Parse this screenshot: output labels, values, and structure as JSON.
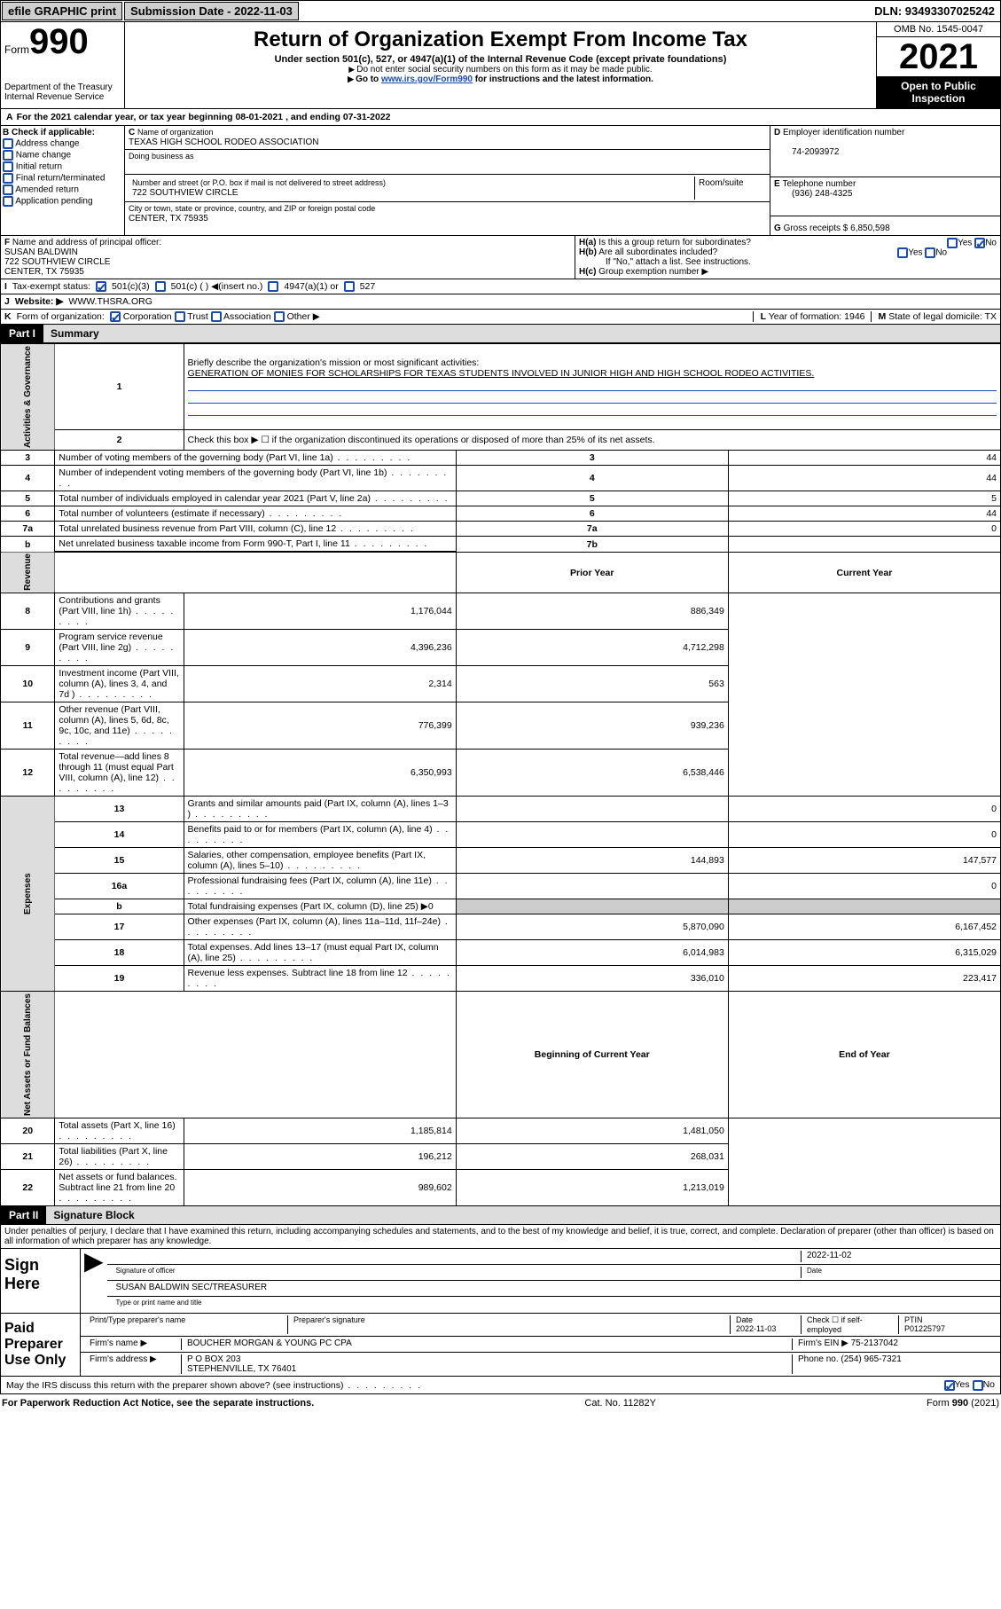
{
  "top": {
    "efile": "efile GRAPHIC print",
    "sub_label": "Submission Date - 2022-11-03",
    "dln": "DLN: 93493307025242"
  },
  "omb": "OMB No. 1545-0047",
  "year": "2021",
  "open": "Open to Public Inspection",
  "form_label": "Form",
  "form_num": "990",
  "dept": "Department of the Treasury\nInternal Revenue Service",
  "title": "Return of Organization Exempt From Income Tax",
  "subtitle": "Under section 501(c), 527, or 4947(a)(1) of the Internal Revenue Code (except private foundations)",
  "note1": "Do not enter social security numbers on this form as it may be made public.",
  "note2_pre": "Go to ",
  "note2_link": "www.irs.gov/Form990",
  "note2_post": " for instructions and the latest information.",
  "a_line": "For the 2021 calendar year, or tax year beginning 08-01-2021    , and ending 07-31-2022",
  "b_hdr": "Check if applicable:",
  "b_opts": [
    "Address change",
    "Name change",
    "Initial return",
    "Final return/terminated",
    "Amended return",
    "Application pending"
  ],
  "c_label": "Name of organization",
  "c_name": "TEXAS HIGH SCHOOL RODEO ASSOCIATION",
  "dba": "Doing business as",
  "addr_label": "Number and street (or P.O. box if mail is not delivered to street address)",
  "room": "Room/suite",
  "addr": "722 SOUTHVIEW CIRCLE",
  "city_label": "City or town, state or province, country, and ZIP or foreign postal code",
  "city": "CENTER, TX  75935",
  "d_label": "Employer identification number",
  "ein": "74-2093972",
  "e_label": "Telephone number",
  "phone": "(936) 248-4325",
  "g_label": "Gross receipts $",
  "g_amt": "6,850,598",
  "f_label": "Name and address of principal officer:",
  "f_name": "SUSAN BALDWIN",
  "f_addr1": "722 SOUTHVIEW CIRCLE",
  "f_addr2": "CENTER, TX  75935",
  "ha": "Is this a group return for subordinates?",
  "hb": "Are all subordinates included?",
  "ha_yn": "No",
  "h_note": "If \"No,\" attach a list. See instructions.",
  "hc": "Group exemption number ▶",
  "i_label": "Tax-exempt status:",
  "i_501c3": "501(c)(3)",
  "i_501c": "501(c) (  ) ◀(insert no.)",
  "i_4947": "4947(a)(1) or",
  "i_527": "527",
  "j_label": "Website: ▶",
  "website": "WWW.THSRA.ORG",
  "k_label": "Form of organization:",
  "k_opts": [
    "Corporation",
    "Trust",
    "Association",
    "Other ▶"
  ],
  "l_label": "Year of formation:",
  "l_val": "1946",
  "m_label": "State of legal domicile:",
  "m_val": "TX",
  "part1": "Part I",
  "part1_title": "Summary",
  "mission_label": "Briefly describe the organization's mission or most significant activities:",
  "mission": "GENERATION OF MONIES FOR SCHOLARSHIPS FOR TEXAS STUDENTS INVOLVED IN JUNIOR HIGH AND HIGH SCHOOL RODEO ACTIVITIES.",
  "line2": "Check this box ▶ ☐  if the organization discontinued its operations or disposed of more than 25% of its net assets.",
  "lines_gov": [
    {
      "n": "3",
      "t": "Number of voting members of the governing body (Part VI, line 1a)",
      "box": "3",
      "val": "44"
    },
    {
      "n": "4",
      "t": "Number of independent voting members of the governing body (Part VI, line 1b)",
      "box": "4",
      "val": "44"
    },
    {
      "n": "5",
      "t": "Total number of individuals employed in calendar year 2021 (Part V, line 2a)",
      "box": "5",
      "val": "5"
    },
    {
      "n": "6",
      "t": "Total number of volunteers (estimate if necessary)",
      "box": "6",
      "val": "44"
    },
    {
      "n": "7a",
      "t": "Total unrelated business revenue from Part VIII, column (C), line 12",
      "box": "7a",
      "val": "0"
    },
    {
      "n": "b",
      "t": "Net unrelated business taxable income from Form 990-T, Part I, line 11",
      "box": "7b",
      "val": ""
    }
  ],
  "prior_hdr": "Prior Year",
  "curr_hdr": "Current Year",
  "revenue": [
    {
      "n": "8",
      "t": "Contributions and grants (Part VIII, line 1h)",
      "p": "1,176,044",
      "c": "886,349"
    },
    {
      "n": "9",
      "t": "Program service revenue (Part VIII, line 2g)",
      "p": "4,396,236",
      "c": "4,712,298"
    },
    {
      "n": "10",
      "t": "Investment income (Part VIII, column (A), lines 3, 4, and 7d )",
      "p": "2,314",
      "c": "563"
    },
    {
      "n": "11",
      "t": "Other revenue (Part VIII, column (A), lines 5, 6d, 8c, 9c, 10c, and 11e)",
      "p": "776,399",
      "c": "939,236"
    },
    {
      "n": "12",
      "t": "Total revenue—add lines 8 through 11 (must equal Part VIII, column (A), line 12)",
      "p": "6,350,993",
      "c": "6,538,446"
    }
  ],
  "expenses": [
    {
      "n": "13",
      "t": "Grants and similar amounts paid (Part IX, column (A), lines 1–3 )",
      "p": "",
      "c": "0"
    },
    {
      "n": "14",
      "t": "Benefits paid to or for members (Part IX, column (A), line 4)",
      "p": "",
      "c": "0"
    },
    {
      "n": "15",
      "t": "Salaries, other compensation, employee benefits (Part IX, column (A), lines 5–10)",
      "p": "144,893",
      "c": "147,577"
    },
    {
      "n": "16a",
      "t": "Professional fundraising fees (Part IX, column (A), line 11e)",
      "p": "",
      "c": "0"
    },
    {
      "n": "b",
      "t": "Total fundraising expenses (Part IX, column (D), line 25) ▶0",
      "p": "GRAY",
      "c": "GRAY"
    },
    {
      "n": "17",
      "t": "Other expenses (Part IX, column (A), lines 11a–11d, 11f–24e)",
      "p": "5,870,090",
      "c": "6,167,452"
    },
    {
      "n": "18",
      "t": "Total expenses. Add lines 13–17 (must equal Part IX, column (A), line 25)",
      "p": "6,014,983",
      "c": "6,315,029"
    },
    {
      "n": "19",
      "t": "Revenue less expenses. Subtract line 18 from line 12",
      "p": "336,010",
      "c": "223,417"
    }
  ],
  "beg_hdr": "Beginning of Current Year",
  "end_hdr": "End of Year",
  "netassets": [
    {
      "n": "20",
      "t": "Total assets (Part X, line 16)",
      "p": "1,185,814",
      "c": "1,481,050"
    },
    {
      "n": "21",
      "t": "Total liabilities (Part X, line 26)",
      "p": "196,212",
      "c": "268,031"
    },
    {
      "n": "22",
      "t": "Net assets or fund balances. Subtract line 21 from line 20",
      "p": "989,602",
      "c": "1,213,019"
    }
  ],
  "part2": "Part II",
  "part2_title": "Signature Block",
  "penalties": "Under penalties of perjury, I declare that I have examined this return, including accompanying schedules and statements, and to the best of my knowledge and belief, it is true, correct, and complete. Declaration of preparer (other than officer) is based on all information of which preparer has any knowledge.",
  "sign_here": "Sign Here",
  "sig_date": "2022-11-02",
  "sig_of": "Signature of officer",
  "date_lbl": "Date",
  "officer": "SUSAN BALDWIN  SEC/TREASURER",
  "type_lbl": "Type or print name and title",
  "paid": "Paid Preparer Use Only",
  "prep_name_lbl": "Print/Type preparer's name",
  "prep_sig_lbl": "Preparer's signature",
  "prep_date_lbl": "Date",
  "prep_date": "2022-11-03",
  "check_self": "Check ☐ if self-employed",
  "ptin_lbl": "PTIN",
  "ptin": "P01225797",
  "firm_name_lbl": "Firm's name   ▶",
  "firm_name": "BOUCHER MORGAN & YOUNG PC CPA",
  "firm_ein_lbl": "Firm's EIN ▶",
  "firm_ein": "75-2137042",
  "firm_addr_lbl": "Firm's address ▶",
  "firm_addr1": "P O BOX 203",
  "firm_addr2": "STEPHENVILLE, TX  76401",
  "firm_phone_lbl": "Phone no.",
  "firm_phone": "(254) 965-7321",
  "may_irs": "May the IRS discuss this return with the preparer shown above? (see instructions)",
  "paperwork": "For Paperwork Reduction Act Notice, see the separate instructions.",
  "catno": "Cat. No. 11282Y",
  "form_foot": "Form 990 (2021)",
  "vert": {
    "gov": "Activities & Governance",
    "rev": "Revenue",
    "exp": "Expenses",
    "net": "Net Assets or Fund Balances"
  }
}
